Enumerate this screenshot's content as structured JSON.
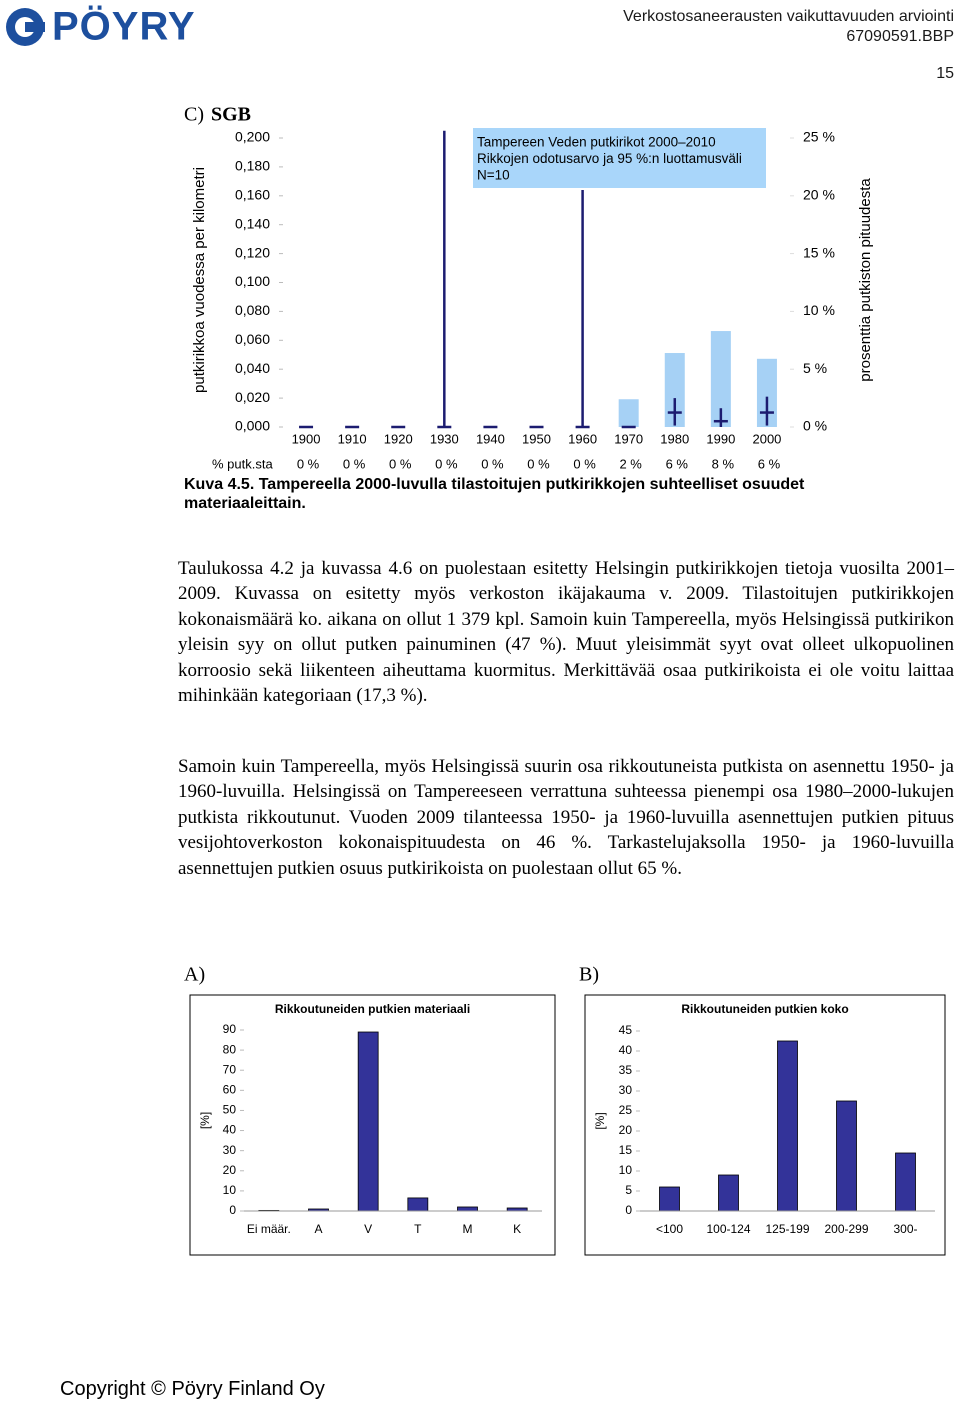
{
  "header": {
    "logo": "PÖYRY",
    "title": "Verkostosaneerausten vaikuttavuuden arviointi",
    "code": "67090591.BBP",
    "page": "15"
  },
  "chart_data": [
    {
      "type": "bar",
      "label": "C)",
      "title": "SGB",
      "annotation": [
        "Tampereen Veden putkirikot 2000–2010",
        "Rikkojen odotusarvo ja 95 %:n luottamusväli",
        "N=10"
      ],
      "ylabel": "putkirikkoa vuodessa per kilometri",
      "y2label": "prosenttia putkiston pituudesta",
      "row_label": "% putk.sta",
      "categories": [
        "1900",
        "1910",
        "1920",
        "1930",
        "1940",
        "1950",
        "1960",
        "1970",
        "1980",
        "1990",
        "2000"
      ],
      "ylim": [
        0,
        0.2
      ],
      "yticks": [
        {
          "value": 0,
          "label": "0,000"
        },
        {
          "value": 0.02,
          "label": "0,020"
        },
        {
          "value": 0.04,
          "label": "0,040"
        },
        {
          "value": 0.06,
          "label": "0,060"
        },
        {
          "value": 0.08,
          "label": "0,080"
        },
        {
          "value": 0.1,
          "label": "0,100"
        },
        {
          "value": 0.12,
          "label": "0,120"
        },
        {
          "value": 0.14,
          "label": "0,140"
        },
        {
          "value": 0.16,
          "label": "0,160"
        },
        {
          "value": 0.18,
          "label": "0,180"
        },
        {
          "value": 0.2,
          "label": "0,200"
        }
      ],
      "y2lim": [
        0,
        25
      ],
      "y2ticks": [
        {
          "value": 0,
          "label": "0 %"
        },
        {
          "value": 5,
          "label": "5 %"
        },
        {
          "value": 10,
          "label": "10 %"
        },
        {
          "value": 15,
          "label": "15 %"
        },
        {
          "value": 20,
          "label": "20 %"
        },
        {
          "value": 25,
          "label": "25 %"
        }
      ],
      "series": [
        {
          "color": "#a6d1f5",
          "axis": "y2",
          "values": [
            0,
            0,
            0,
            0,
            0,
            0,
            0,
            2.4,
            6.4,
            8.3,
            5.9
          ],
          "value_labels": [
            "0 %",
            "0 %",
            "0 %",
            "0 %",
            "0 %",
            "0 %",
            "0 %",
            "2 %",
            "6 %",
            "8 %",
            "6 %"
          ]
        },
        {
          "color": "#1c1c70",
          "values": [
            0,
            0,
            0,
            0,
            0,
            0,
            0,
            0,
            0.01,
            0.004,
            0.01
          ],
          "ci_low": [
            0,
            0,
            0,
            0,
            0,
            0,
            0,
            0,
            0.001,
            0,
            0.001
          ],
          "ci_high": [
            0,
            0,
            0,
            0.205,
            0,
            0,
            0.164,
            0,
            0.02,
            0.013,
            0.021
          ]
        }
      ]
    },
    {
      "type": "bar",
      "label": "A)",
      "title": "Rikkoutuneiden putkien materiaali",
      "ylabel": "[%]",
      "color": "#333399",
      "categories": [
        "Ei määr.",
        "A",
        "V",
        "T",
        "M",
        "K"
      ],
      "values": [
        0.3,
        1,
        89,
        6.5,
        2,
        1.5
      ],
      "ylim": [
        0,
        90
      ],
      "yticks": [
        0,
        10,
        20,
        30,
        40,
        50,
        60,
        70,
        80,
        90
      ]
    },
    {
      "type": "bar",
      "label": "B)",
      "title": "Rikkoutuneiden putkien koko",
      "ylabel": "[%]",
      "color": "#333399",
      "categories": [
        "<100",
        "100-124",
        "125-199",
        "200-299",
        "300-"
      ],
      "values": [
        6,
        9,
        42.5,
        27.5,
        14.5
      ],
      "ylim": [
        0,
        45
      ],
      "yticks": [
        0,
        5,
        10,
        15,
        20,
        25,
        30,
        35,
        40,
        45
      ]
    }
  ],
  "caption": "Kuva 4.5. Tampereella 2000-luvulla tilastoitujen putkirikkojen suhteelliset osuudet materiaaleittain.",
  "paragraphs": [
    "Taulukossa 4.2 ja kuvassa 4.6 on puolestaan esitetty Helsingin putkirikkojen tietoja vuosilta 2001–2009. Kuvassa on esitetty myös verkoston ikäjakauma v. 2009. Tilastoitujen putkirikkojen kokonaismäärä ko. aikana on ollut 1 379 kpl. Samoin kuin Tampereella, myös Helsingissä putkirikon yleisin syy on ollut putken painuminen (47 %). Muut yleisimmät syyt ovat olleet ulkopuolinen korroosio sekä liikenteen aiheuttama kuormitus. Merkittävää osaa putkirikoista ei ole voitu laittaa mihinkään kategoriaan (17,3 %).",
    "Samoin kuin Tampereella, myös Helsingissä suurin osa rikkoutuneista putkista on asennettu 1950- ja 1960-luvuilla. Helsingissä on Tampereeseen verrattuna suhteessa pienempi osa 1980–2000-lukujen putkista rikkoutunut. Vuoden 2009 tilanteessa 1950- ja 1960-luvuilla asennettujen putkien pituus vesijohtoverkoston kokonaispituudesta on 46 %. Tarkastelujaksolla 1950- ja 1960-luvuilla asennettujen putkien osuus putkirikoista on puolestaan ollut 65 %."
  ],
  "footer": "Copyright © Pöyry Finland Oy"
}
